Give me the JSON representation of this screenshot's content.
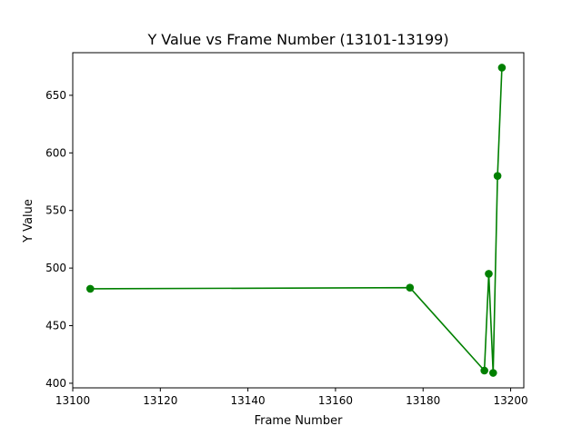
{
  "chart_data": {
    "type": "line",
    "title": "Y Value vs Frame Number (13101-13199)",
    "xlabel": "Frame Number",
    "ylabel": "Y Value",
    "xlim": [
      13100,
      13203
    ],
    "ylim": [
      396,
      687
    ],
    "x_ticks": [
      13100,
      13120,
      13140,
      13160,
      13180,
      13200
    ],
    "y_ticks": [
      400,
      450,
      500,
      550,
      600,
      650
    ],
    "grid": false,
    "legend": "none",
    "series": [
      {
        "color": "#008000",
        "marker": "circle",
        "x": [
          13104,
          13177,
          13194,
          13195,
          13196,
          13197,
          13198
        ],
        "y": [
          482,
          483,
          411,
          495,
          409,
          580,
          674
        ]
      }
    ]
  }
}
